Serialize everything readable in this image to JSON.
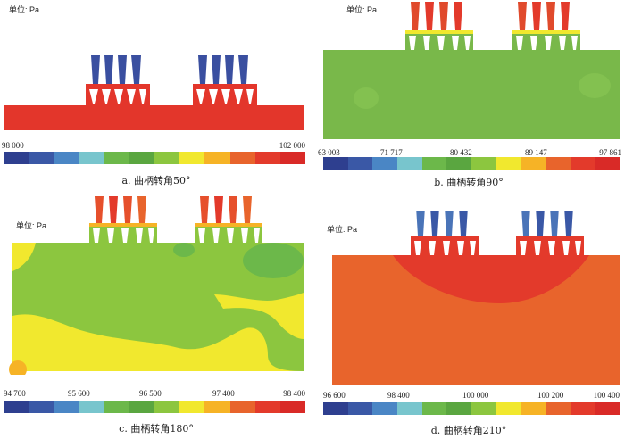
{
  "unit_label": "单位: Pa",
  "colorbar_colors": [
    "#2e3f8f",
    "#3a58a6",
    "#4a86c5",
    "#78c5cd",
    "#6cb84a",
    "#5aa640",
    "#8cc63f",
    "#f1e82e",
    "#f6b326",
    "#e8642c",
    "#e33a2b",
    "#d92a27"
  ],
  "panels": [
    {
      "caption": "a. 曲柄转角50°",
      "ticks": [
        "98 000",
        "102 000"
      ],
      "fluid_color": "#e3362b",
      "nozzle_color": "#3a4fa0"
    },
    {
      "caption": "b. 曲柄转角90°",
      "ticks": [
        "63 003",
        "71 717",
        "80 432",
        "89 147",
        "97 861"
      ],
      "fluid_color": "#79b84a",
      "nozzle_color": "#e04a2c"
    },
    {
      "caption": "c. 曲柄转角180°",
      "ticks": [
        "94 700",
        "95 600",
        "96 500",
        "97 400",
        "98 400"
      ],
      "fluid_color": "#8cc63f",
      "nozzle_color": "#e6502c"
    },
    {
      "caption": "d. 曲柄转角210°",
      "ticks": [
        "96 600",
        "98 400",
        "100 000",
        "100 200",
        "100 400"
      ],
      "fluid_color": "#e8642c",
      "nozzle_color": "#4a74b8"
    }
  ]
}
